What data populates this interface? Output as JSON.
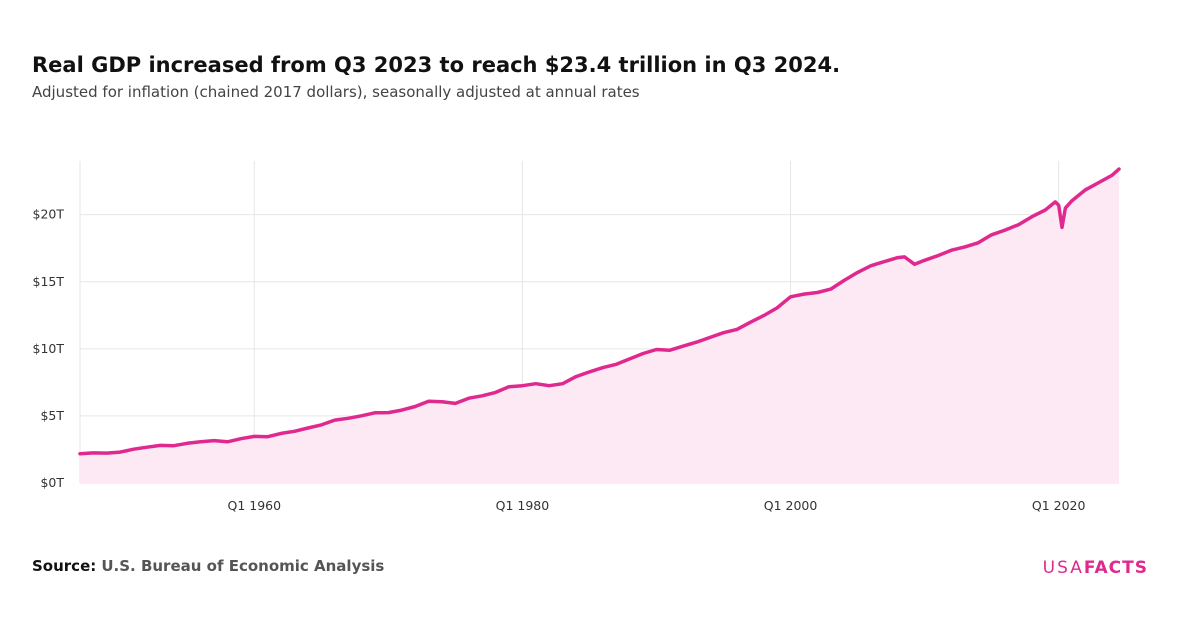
{
  "chart_data": {
    "type": "line",
    "title": "Real GDP increased from Q3 2023 to reach $23.4 trillion in Q3 2024.",
    "subtitle": "Adjusted for inflation (chained 2017 dollars), seasonally adjusted at annual rates",
    "source_label": "Source:",
    "source": "U.S. Bureau of Economic Analysis",
    "brand": {
      "first": "USA",
      "second": "FACTS"
    },
    "color": "#e0298f",
    "area_color": "#fce9f3",
    "grid": true,
    "x": [
      "Q1 1947",
      "Q1 1948",
      "Q1 1949",
      "Q1 1950",
      "Q1 1951",
      "Q1 1952",
      "Q1 1953",
      "Q1 1954",
      "Q1 1955",
      "Q1 1956",
      "Q1 1957",
      "Q1 1958",
      "Q1 1959",
      "Q1 1960",
      "Q1 1961",
      "Q1 1962",
      "Q1 1963",
      "Q1 1964",
      "Q1 1965",
      "Q1 1966",
      "Q1 1967",
      "Q1 1968",
      "Q1 1969",
      "Q1 1970",
      "Q1 1971",
      "Q1 1972",
      "Q1 1973",
      "Q1 1974",
      "Q1 1975",
      "Q1 1976",
      "Q1 1977",
      "Q1 1978",
      "Q1 1979",
      "Q1 1980",
      "Q1 1981",
      "Q1 1982",
      "Q1 1983",
      "Q1 1984",
      "Q1 1985",
      "Q1 1986",
      "Q1 1987",
      "Q1 1988",
      "Q1 1989",
      "Q1 1990",
      "Q1 1991",
      "Q1 1992",
      "Q1 1993",
      "Q1 1994",
      "Q1 1995",
      "Q1 1996",
      "Q1 1997",
      "Q1 1998",
      "Q1 1999",
      "Q1 2000",
      "Q1 2001",
      "Q1 2002",
      "Q1 2003",
      "Q1 2004",
      "Q1 2005",
      "Q1 2006",
      "Q1 2007",
      "Q1 2008",
      "Q3 2008",
      "Q2 2009",
      "Q1 2010",
      "Q1 2011",
      "Q1 2012",
      "Q1 2013",
      "Q1 2014",
      "Q1 2015",
      "Q1 2016",
      "Q1 2017",
      "Q1 2018",
      "Q1 2019",
      "Q4 2019",
      "Q1 2020",
      "Q2 2020",
      "Q3 2020",
      "Q1 2021",
      "Q1 2022",
      "Q1 2023",
      "Q1 2024",
      "Q3 2024"
    ],
    "values": [
      2.18,
      2.24,
      2.23,
      2.3,
      2.52,
      2.67,
      2.8,
      2.78,
      2.96,
      3.07,
      3.16,
      3.07,
      3.3,
      3.47,
      3.45,
      3.7,
      3.85,
      4.1,
      4.33,
      4.69,
      4.82,
      5.01,
      5.23,
      5.25,
      5.43,
      5.7,
      6.1,
      6.05,
      5.93,
      6.32,
      6.5,
      6.75,
      7.18,
      7.25,
      7.4,
      7.25,
      7.4,
      7.93,
      8.28,
      8.6,
      8.85,
      9.25,
      9.65,
      9.95,
      9.9,
      10.2,
      10.5,
      10.85,
      11.2,
      11.45,
      11.98,
      12.48,
      13.05,
      13.88,
      14.08,
      14.2,
      14.45,
      15.1,
      15.7,
      16.2,
      16.5,
      16.8,
      16.85,
      16.3,
      16.6,
      16.95,
      17.35,
      17.6,
      17.9,
      18.5,
      18.85,
      19.25,
      19.85,
      20.35,
      20.95,
      20.7,
      19.05,
      20.5,
      21.05,
      21.85,
      22.4,
      22.95,
      23.4
    ],
    "xticks": [
      "Q1 1960",
      "Q1 1980",
      "Q1 2000",
      "Q1 2020"
    ],
    "ylim": [
      0,
      24
    ],
    "yticks": [
      {
        "value": 0,
        "label": "$0T"
      },
      {
        "value": 5,
        "label": "$5T"
      },
      {
        "value": 10,
        "label": "$10T"
      },
      {
        "value": 15,
        "label": "$15T"
      },
      {
        "value": 20,
        "label": "$20T"
      }
    ]
  }
}
